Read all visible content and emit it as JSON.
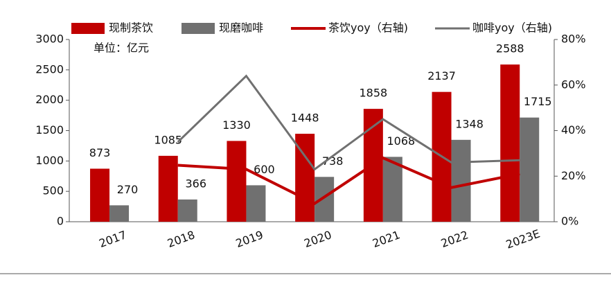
{
  "chart_data": {
    "type": "bar_line",
    "annotation": "单位：亿元",
    "categories": [
      "2017",
      "2018",
      "2019",
      "2020",
      "2021",
      "2022",
      "2023E"
    ],
    "series": [
      {
        "name": "现制茶饮",
        "color": "#c00000",
        "type": "bar",
        "values": [
          873,
          1085,
          1330,
          1448,
          1858,
          2137,
          2588
        ]
      },
      {
        "name": "现磨咖啡",
        "color": "#707070",
        "type": "bar",
        "values": [
          270,
          366,
          600,
          738,
          1068,
          1348,
          1715
        ]
      },
      {
        "name": "茶饮yoy（右轴)",
        "color": "#c00000",
        "type": "line",
        "axis": "y2",
        "values": [
          null,
          24.8,
          23,
          8,
          28,
          15,
          21
        ]
      },
      {
        "name": "咖啡yoy（右轴)",
        "color": "#707070",
        "type": "line",
        "axis": "y2",
        "values": [
          null,
          35,
          64,
          23,
          45,
          26,
          27
        ]
      }
    ],
    "ylim": [
      0,
      3000
    ],
    "yticks": [
      0,
      500,
      1000,
      1500,
      2000,
      2500,
      3000
    ],
    "y2lim": [
      0,
      80
    ],
    "y2ticks": [
      {
        "value": 0,
        "label": "0%"
      },
      {
        "value": 20,
        "label": "20%"
      },
      {
        "value": 40,
        "label": "40%"
      },
      {
        "value": 60,
        "label": "60%"
      },
      {
        "value": 80,
        "label": "80%"
      }
    ]
  }
}
